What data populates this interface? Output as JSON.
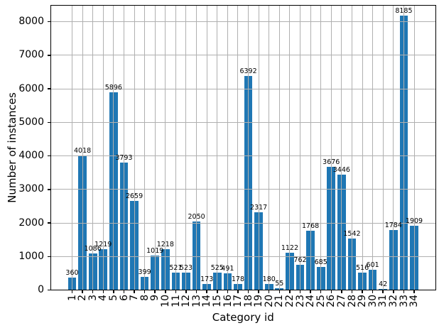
{
  "chart_data": {
    "type": "bar",
    "title": "",
    "xlabel": "Category id",
    "ylabel": "Number of instances",
    "categories": [
      "1",
      "2",
      "3",
      "4",
      "5",
      "6",
      "7",
      "8",
      "9",
      "10",
      "11",
      "12",
      "13",
      "14",
      "15",
      "16",
      "17",
      "18",
      "19",
      "20",
      "21",
      "22",
      "23",
      "24",
      "25",
      "26",
      "27",
      "28",
      "29",
      "30",
      "31",
      "32",
      "33",
      "34"
    ],
    "values": [
      360,
      4018,
      1086,
      1219,
      5896,
      3793,
      2659,
      399,
      1019,
      1218,
      521,
      523,
      2050,
      173,
      525,
      491,
      178,
      6392,
      2317,
      180,
      55,
      1122,
      762,
      1768,
      685,
      3676,
      3446,
      1542,
      516,
      601,
      42,
      1784,
      8185,
      1909
    ],
    "bar_labels": [
      "360",
      "4018",
      "1086",
      "1219",
      "5896",
      "3793",
      "2659",
      "399",
      "1019",
      "1218",
      "521",
      "523",
      "2050",
      "173",
      "525",
      "491",
      "178",
      "6392",
      "2317",
      "180",
      "55",
      "1122",
      "762",
      "1768",
      "685",
      "3676",
      "3446",
      "1542",
      "516",
      "601",
      "42",
      "1784",
      "8185",
      "1909"
    ],
    "yticks": [
      0,
      1000,
      2000,
      3000,
      4000,
      5000,
      6000,
      7000,
      8000
    ],
    "ytick_labels": [
      "0",
      "1000",
      "2000",
      "3000",
      "4000",
      "5000",
      "6000",
      "7000",
      "8000"
    ],
    "ylim": [
      0,
      8500
    ],
    "grid": true,
    "grid_on_top": true,
    "legend": false,
    "bar_color": "#1f77b4",
    "grid_color": "#b0b0b0",
    "spine_color": "#000000",
    "text_color": "#000000"
  }
}
